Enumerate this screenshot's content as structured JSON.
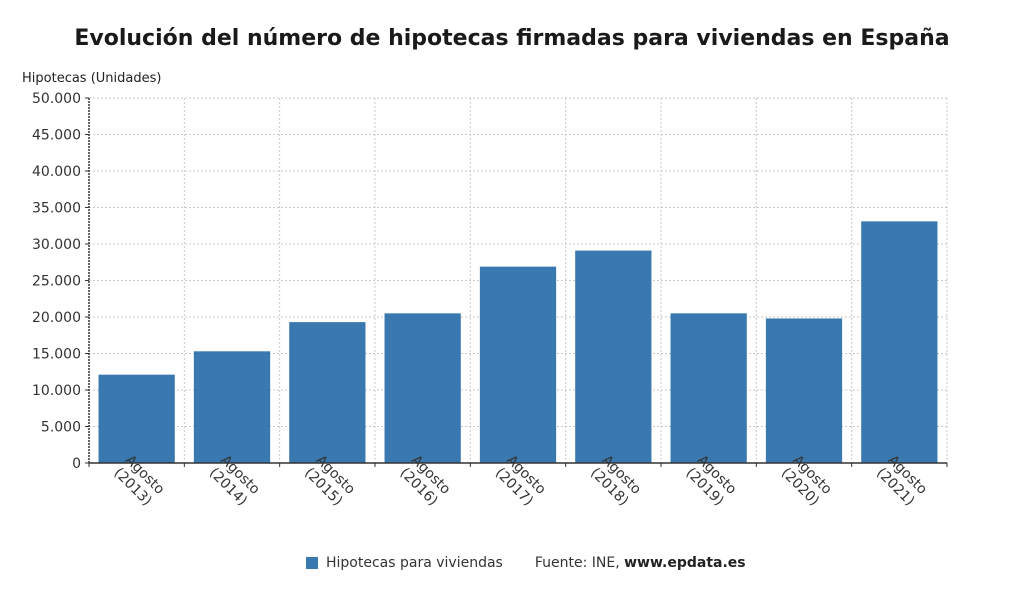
{
  "colors": {
    "bar": "#3a78b0",
    "grid": "#c8c8c8",
    "axis": "#333333"
  },
  "legend": {
    "label": "Hipotecas para viviendas"
  },
  "source": {
    "prefix": "Fuente: INE, ",
    "site": "www.epdata.es"
  },
  "chart_data": {
    "type": "bar",
    "title": "Evolución del número de hipotecas firmadas para viviendas en España",
    "ylabel": "Hipotecas (Unidades)",
    "xlabel": "",
    "ylim": [
      0,
      50000
    ],
    "yticks": [
      0,
      5000,
      10000,
      15000,
      20000,
      25000,
      30000,
      35000,
      40000,
      45000,
      50000
    ],
    "ytick_labels": [
      "0",
      "5.000",
      "10.000",
      "15.000",
      "20.000",
      "25.000",
      "30.000",
      "35.000",
      "40.000",
      "45.000",
      "50.000"
    ],
    "categories": [
      [
        "Agosto",
        "(2013)"
      ],
      [
        "Agosto",
        "(2014)"
      ],
      [
        "Agosto",
        "(2015)"
      ],
      [
        "Agosto",
        "(2016)"
      ],
      [
        "Agosto",
        "(2017)"
      ],
      [
        "Agosto",
        "(2018)"
      ],
      [
        "Agosto",
        "(2019)"
      ],
      [
        "Agosto",
        "(2020)"
      ],
      [
        "Agosto",
        "(2021)"
      ]
    ],
    "series": [
      {
        "name": "Hipotecas para viviendas",
        "values": [
          12100,
          15300,
          19300,
          20500,
          26900,
          29100,
          20500,
          19800,
          33100
        ]
      }
    ],
    "grid": true,
    "legend_position": "bottom"
  }
}
